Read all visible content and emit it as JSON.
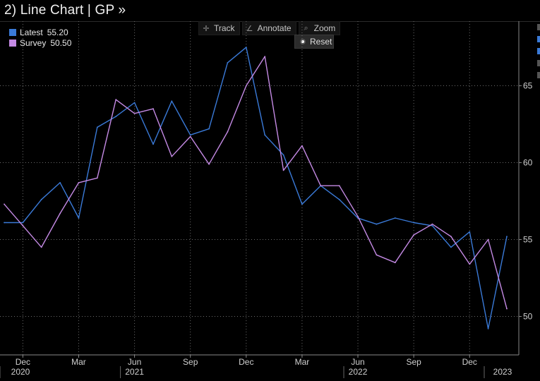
{
  "header": {
    "title": "2) Line Chart | GP »"
  },
  "toolbar": {
    "track": "Track",
    "annotate": "Annotate",
    "zoom": "Zoom",
    "reset": "Reset"
  },
  "colors": {
    "latest": "#3a7ad8",
    "survey": "#c48ae4",
    "grid": "#6a6a6a"
  },
  "chart_data": {
    "type": "line",
    "x_unit": "month",
    "x_range": [
      "2019-11",
      "2023-01"
    ],
    "ylim": [
      47.5,
      69.2
    ],
    "yticks": [
      50,
      55,
      60,
      65
    ],
    "grid": true,
    "legend_position": "top-left",
    "legend": [
      {
        "name": "Latest",
        "value": "55.20"
      },
      {
        "name": "Survey",
        "value": "50.50"
      }
    ],
    "month_ticks": [
      {
        "x": "2019-12",
        "label": "Dec"
      },
      {
        "x": "2020-03",
        "label": "Mar"
      },
      {
        "x": "2020-06",
        "label": "Jun"
      },
      {
        "x": "2020-09",
        "label": "Sep"
      },
      {
        "x": "2020-12",
        "label": "Dec"
      },
      {
        "x": "2021-03",
        "label": "Mar"
      },
      {
        "x": "2021-06",
        "label": "Jun"
      },
      {
        "x": "2021-09",
        "label": "Sep"
      },
      {
        "x": "2021-12",
        "label": "Dec"
      }
    ],
    "year_ticks": [
      {
        "x": "2019-11",
        "label": "2020"
      },
      {
        "x": "2020-06",
        "label": "2021"
      },
      {
        "x": "2021-06",
        "label": "2022"
      },
      {
        "x": "2022-12",
        "label": "2023"
      }
    ],
    "series": [
      {
        "name": "Latest",
        "color": "#3a7ad8",
        "points": [
          [
            "2019-11",
            56.1
          ],
          [
            "2019-12",
            56.1
          ],
          [
            "2020-01",
            57.6
          ],
          [
            "2020-02",
            58.7
          ],
          [
            "2020-03",
            56.4
          ],
          [
            "2020-04",
            62.3
          ],
          [
            "2020-05",
            63.0
          ],
          [
            "2020-06",
            63.9
          ],
          [
            "2020-07",
            61.2
          ],
          [
            "2020-08",
            64.0
          ],
          [
            "2020-09",
            61.8
          ],
          [
            "2020-10",
            62.2
          ],
          [
            "2020-11",
            66.5
          ],
          [
            "2020-12",
            67.5
          ],
          [
            "2021-01",
            61.8
          ],
          [
            "2021-02",
            60.5
          ],
          [
            "2021-03",
            57.3
          ],
          [
            "2021-04",
            58.5
          ],
          [
            "2021-05",
            57.6
          ],
          [
            "2021-06",
            56.4
          ],
          [
            "2021-07",
            56.0
          ],
          [
            "2021-08",
            56.4
          ],
          [
            "2021-09",
            56.1
          ],
          [
            "2021-10",
            55.9
          ],
          [
            "2021-11",
            54.5
          ],
          [
            "2021-12",
            55.5
          ],
          [
            "2022-01",
            49.2
          ],
          [
            "2022-02",
            55.2
          ]
        ]
      },
      {
        "name": "Survey",
        "color": "#c48ae4",
        "points": [
          [
            "2019-11",
            57.3
          ],
          [
            "2019-12",
            55.9
          ],
          [
            "2020-01",
            54.5
          ],
          [
            "2020-02",
            56.7
          ],
          [
            "2020-03",
            58.7
          ],
          [
            "2020-04",
            59.0
          ],
          [
            "2020-05",
            64.1
          ],
          [
            "2020-06",
            63.2
          ],
          [
            "2020-07",
            63.5
          ],
          [
            "2020-08",
            60.4
          ],
          [
            "2020-09",
            61.7
          ],
          [
            "2020-10",
            59.9
          ],
          [
            "2020-11",
            62.0
          ],
          [
            "2020-12",
            65.0
          ],
          [
            "2021-01",
            66.9
          ],
          [
            "2021-02",
            59.5
          ],
          [
            "2021-03",
            61.1
          ],
          [
            "2021-04",
            58.5
          ],
          [
            "2021-05",
            58.5
          ],
          [
            "2021-06",
            56.5
          ],
          [
            "2021-07",
            54.0
          ],
          [
            "2021-08",
            53.5
          ],
          [
            "2021-09",
            55.3
          ],
          [
            "2021-10",
            56.0
          ],
          [
            "2021-11",
            55.2
          ],
          [
            "2021-12",
            53.4
          ],
          [
            "2022-01",
            55.0
          ],
          [
            "2022-02",
            50.5
          ]
        ]
      }
    ]
  }
}
